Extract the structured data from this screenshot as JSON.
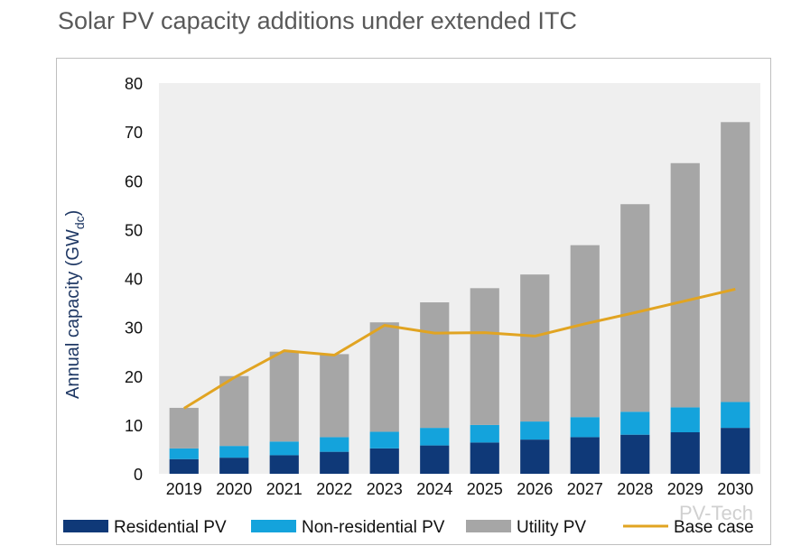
{
  "title": "Solar PV capacity additions under extended ITC",
  "watermark": "PV-Tech",
  "chart_data": {
    "type": "bar",
    "stacked": true,
    "categories": [
      "2019",
      "2020",
      "2021",
      "2022",
      "2023",
      "2024",
      "2025",
      "2026",
      "2027",
      "2028",
      "2029",
      "2030"
    ],
    "ylabel": "Annual capacity (GW",
    "ylabel_sub": "dc",
    "ylabel_close": ")",
    "ylim": [
      0,
      80
    ],
    "yticks": [
      0,
      10,
      20,
      30,
      40,
      50,
      60,
      70,
      80
    ],
    "series": [
      {
        "name": "Residential PV",
        "color": "#0f3978",
        "values": [
          3.0,
          3.3,
          3.8,
          4.5,
          5.2,
          5.8,
          6.4,
          7.0,
          7.5,
          8.0,
          8.5,
          9.4
        ]
      },
      {
        "name": "Non-residential PV",
        "color": "#14a3dc",
        "values": [
          2.2,
          2.4,
          2.8,
          3.0,
          3.4,
          3.6,
          3.6,
          3.7,
          4.1,
          4.7,
          5.1,
          5.3
        ]
      },
      {
        "name": "Utility PV",
        "color": "#a6a6a6",
        "values": [
          8.3,
          14.3,
          18.4,
          17.0,
          22.4,
          25.7,
          28.0,
          30.1,
          35.2,
          42.5,
          50.0,
          57.3
        ]
      }
    ],
    "line": {
      "name": "Base case",
      "color": "#e1a422",
      "values": [
        13.4,
        19.7,
        25.2,
        24.3,
        30.4,
        28.8,
        28.9,
        28.2,
        30.7,
        33.0,
        35.4,
        37.8
      ]
    },
    "plot_background": "#efefef"
  }
}
